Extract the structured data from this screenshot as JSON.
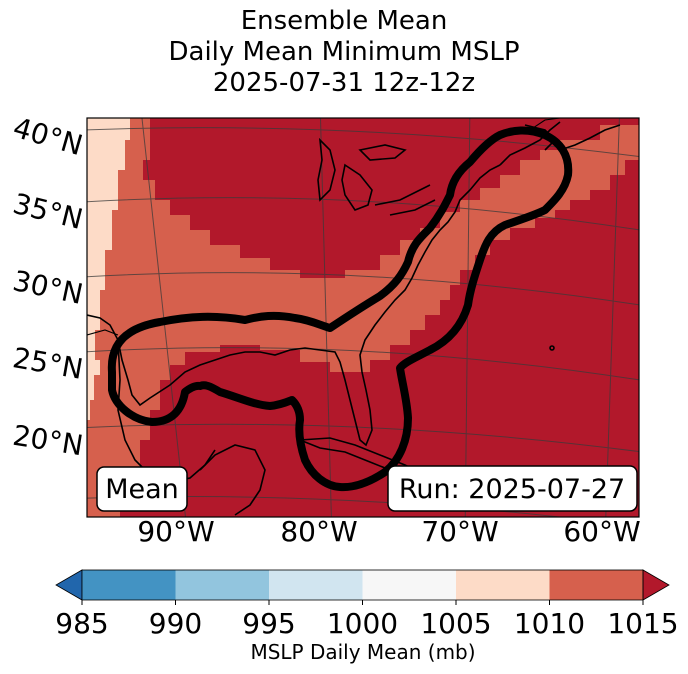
{
  "title": {
    "line1": "Ensemble Mean",
    "line2": "Daily Mean Minimum MSLP",
    "line3": "2025-07-31 12z-12z"
  },
  "map": {
    "lat_labels": [
      "40°N",
      "35°N",
      "30°N",
      "25°N",
      "20°N"
    ],
    "lon_labels": [
      "90°W",
      "80°W",
      "70°W",
      "60°W"
    ],
    "mean_box": "Mean",
    "run_box": "Run: 2025-07-27",
    "colors": {
      "band_1005_1010": "#fddbc7",
      "band_1010_1015": "#d6604d",
      "band_1015_plus": "#b2182b"
    }
  },
  "colorbar": {
    "label": "MSLP Daily Mean (mb)",
    "ticks": [
      "985",
      "990",
      "995",
      "1000",
      "1005",
      "1010",
      "1015"
    ],
    "colors": [
      "#2166ac",
      "#4393c3",
      "#92c5de",
      "#d1e5f0",
      "#f7f7f7",
      "#fddbc7",
      "#d6604d",
      "#b2182b"
    ]
  }
}
